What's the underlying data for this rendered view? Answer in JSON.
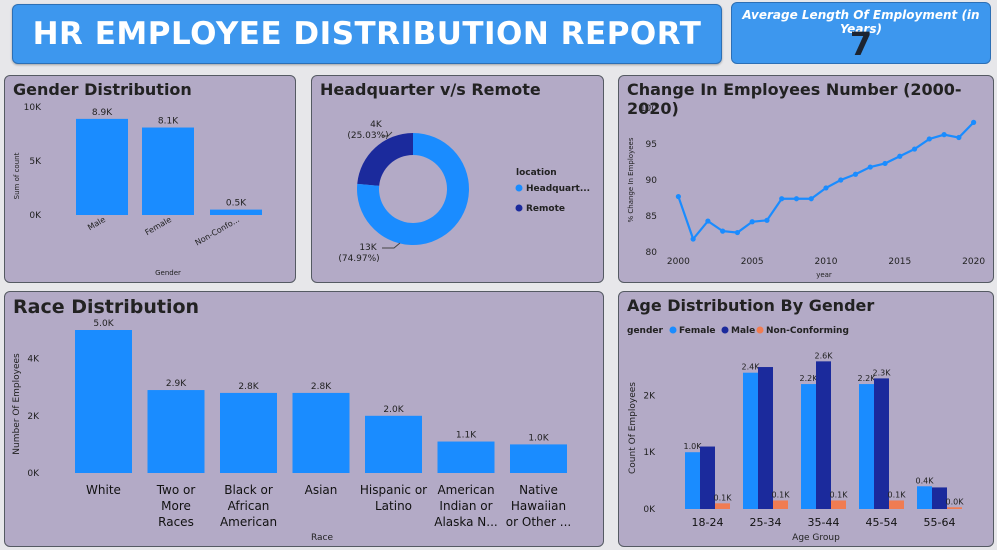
{
  "header": {
    "title": "HR EMPLOYEE DISTRIBUTION REPORT",
    "kpi_label": "Average Length Of Employment (in Years)",
    "kpi_value": "7"
  },
  "colors": {
    "primary": "#1a8cff",
    "navy": "#1b2a9c",
    "orange": "#f07c52"
  },
  "panels": {
    "gender_title": "Gender Distribution",
    "hq_title": "Headquarter v/s Remote",
    "change_title": "Change In Employees Number (2000-2020)",
    "race_title": "Race Distribution",
    "age_title": "Age Distribution By Gender"
  },
  "chart_data": [
    {
      "id": "gender",
      "type": "bar",
      "categories": [
        "Male",
        "Female",
        "Non-Confo..."
      ],
      "values": [
        8900,
        8100,
        500
      ],
      "data_labels": [
        "8.9K",
        "8.1K",
        "0.5K"
      ],
      "ylabel": "Sum of count",
      "xlabel": "Gender",
      "ylim": [
        0,
        10000
      ],
      "yticks": [
        0,
        5000,
        10000
      ],
      "ytick_labels": [
        "0K",
        "5K",
        "10K"
      ]
    },
    {
      "id": "hq",
      "type": "pie",
      "variant": "donut",
      "legend_title": "location",
      "labels": [
        "Headquart...",
        "Remote"
      ],
      "values": [
        13000,
        4000
      ],
      "percents": [
        74.97,
        25.03
      ],
      "callouts": [
        [
          "13K",
          "(74.97%)"
        ],
        [
          "4K",
          "(25.03%)"
        ]
      ]
    },
    {
      "id": "change",
      "type": "line",
      "xlabel": "year",
      "ylabel": "% Change In Employees",
      "x": [
        2000,
        2001,
        2002,
        2003,
        2004,
        2005,
        2006,
        2007,
        2008,
        2009,
        2010,
        2011,
        2012,
        2013,
        2014,
        2015,
        2016,
        2017,
        2018,
        2019,
        2020
      ],
      "y": [
        87.7,
        81.8,
        84.3,
        82.9,
        82.7,
        84.2,
        84.4,
        87.4,
        87.4,
        87.4,
        88.9,
        90.0,
        90.8,
        91.8,
        92.3,
        93.3,
        94.3,
        95.7,
        96.3,
        95.9,
        98.0
      ],
      "xlim": [
        1999.5,
        2020.5
      ],
      "ylim": [
        80,
        100
      ],
      "xticks": [
        2000,
        2005,
        2010,
        2015,
        2020
      ],
      "yticks": [
        80,
        85,
        90,
        95,
        100
      ]
    },
    {
      "id": "race",
      "type": "bar",
      "categories": [
        [
          "White"
        ],
        [
          "Two or",
          "More",
          "Races"
        ],
        [
          "Black or",
          "African",
          "American"
        ],
        [
          "Asian"
        ],
        [
          "Hispanic or",
          "Latino"
        ],
        [
          "American",
          "Indian or",
          "Alaska N..."
        ],
        [
          "Native",
          "Hawaiian",
          "or Other ..."
        ]
      ],
      "values": [
        5000,
        2900,
        2800,
        2800,
        2000,
        1100,
        1000
      ],
      "data_labels": [
        "5.0K",
        "2.9K",
        "2.8K",
        "2.8K",
        "2.0K",
        "1.1K",
        "1.0K"
      ],
      "ylabel": "Number Of Employees",
      "xlabel": "Race",
      "ylim": [
        0,
        5000
      ],
      "yticks": [
        0,
        2000,
        4000
      ],
      "ytick_labels": [
        "0K",
        "2K",
        "4K"
      ]
    },
    {
      "id": "age",
      "type": "bar",
      "legend_title": "gender",
      "categories": [
        "18-24",
        "25-34",
        "35-44",
        "45-54",
        "55-64"
      ],
      "series": [
        {
          "name": "Female",
          "values": [
            1000,
            2400,
            2200,
            2200,
            400
          ],
          "labels": [
            "1.0K",
            "2.4K",
            "2.2K",
            "2.2K",
            "0.4K"
          ]
        },
        {
          "name": "Male",
          "values": [
            1100,
            2500,
            2600,
            2300,
            380
          ],
          "labels": [
            "",
            "",
            "2.6K",
            "2.3K",
            ""
          ]
        },
        {
          "name": "Non-Conforming",
          "values": [
            100,
            150,
            150,
            150,
            30
          ],
          "labels": [
            "0.1K",
            "0.1K",
            "0.1K",
            "0.1K",
            "0.0K"
          ]
        }
      ],
      "ylabel": "Count Of Employees",
      "xlabel": "Age Group",
      "ylim": [
        0,
        2800
      ],
      "yticks": [
        0,
        1000,
        2000
      ],
      "ytick_labels": [
        "0K",
        "1K",
        "2K"
      ]
    }
  ]
}
